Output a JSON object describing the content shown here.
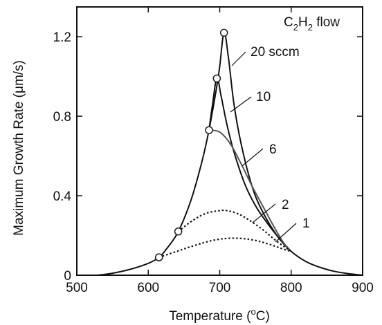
{
  "chart_data": {
    "type": "line",
    "title": "",
    "xlabel": {
      "text": "Temperature (",
      "sup": "o",
      "text2": "C)"
    },
    "ylabel": "Maximum Growth Rate (μm/s)",
    "xlim": [
      500,
      900
    ],
    "ylim": [
      0,
      1.35
    ],
    "xticks": [
      500,
      600,
      700,
      800,
      900
    ],
    "xtick_labels": [
      "500",
      "600",
      "700",
      "800",
      "900"
    ],
    "yticks": [
      0,
      0.4,
      0.8,
      1.2
    ],
    "ytick_labels": [
      "0",
      "0.4",
      "0.8",
      "1.2"
    ],
    "grid": false,
    "legend_title": {
      "pre": "C",
      "sub1": "2",
      "mid": "H",
      "sub2": "2",
      "post": " flow"
    },
    "series": [
      {
        "name": "20 sccm",
        "label": "20 sccm",
        "style": "solid",
        "color": "#111111",
        "x": [
          528,
          550,
          575,
          600,
          615,
          625,
          642,
          660,
          675,
          685,
          695,
          700,
          706,
          712,
          720,
          730,
          745,
          760,
          780,
          800,
          820,
          840,
          860,
          880,
          900
        ],
        "y": [
          0.0,
          0.01,
          0.03,
          0.06,
          0.09,
          0.13,
          0.22,
          0.38,
          0.57,
          0.73,
          0.93,
          1.05,
          1.22,
          1.1,
          0.86,
          0.66,
          0.45,
          0.32,
          0.2,
          0.12,
          0.07,
          0.04,
          0.02,
          0.008,
          0.0
        ],
        "markers": [
          [
            615,
            0.09
          ],
          [
            642,
            0.22
          ],
          [
            685,
            0.73
          ],
          [
            696,
            0.99
          ],
          [
            706,
            1.22
          ]
        ]
      },
      {
        "name": "10",
        "label": "10",
        "style": "solid",
        "color": "#111111",
        "x": [
          685,
          690,
          696,
          702,
          710,
          720,
          735,
          750,
          765,
          780,
          800
        ],
        "y": [
          0.73,
          0.86,
          0.99,
          0.9,
          0.76,
          0.62,
          0.46,
          0.35,
          0.27,
          0.2,
          0.12
        ],
        "markers": [
          [
            696,
            0.99
          ]
        ]
      },
      {
        "name": "6",
        "label": "6",
        "style": "solid",
        "color": "#555555",
        "x": [
          685,
          700,
          715,
          730,
          745,
          760,
          775,
          790,
          800
        ],
        "y": [
          0.73,
          0.72,
          0.66,
          0.56,
          0.45,
          0.35,
          0.25,
          0.16,
          0.12
        ],
        "markers": [
          [
            685,
            0.73
          ]
        ]
      },
      {
        "name": "2",
        "label": "2",
        "style": "dotted",
        "color": "#111111",
        "x": [
          642,
          660,
          680,
          700,
          710,
          725,
          740,
          760,
          780,
          800
        ],
        "y": [
          0.22,
          0.27,
          0.31,
          0.325,
          0.325,
          0.31,
          0.28,
          0.23,
          0.17,
          0.12
        ],
        "markers": [
          [
            642,
            0.22
          ]
        ]
      },
      {
        "name": "1",
        "label": "1",
        "style": "dotted",
        "color": "#111111",
        "x": [
          615,
          640,
          665,
          690,
          710,
          730,
          750,
          770,
          790,
          800
        ],
        "y": [
          0.09,
          0.12,
          0.15,
          0.175,
          0.185,
          0.185,
          0.175,
          0.155,
          0.13,
          0.12
        ],
        "markers": [
          [
            615,
            0.09
          ]
        ]
      }
    ],
    "annotations": [
      {
        "series": "20 sccm",
        "text": "20 sccm"
      },
      {
        "series": "10",
        "text": "10"
      },
      {
        "series": "6",
        "text": "6"
      },
      {
        "series": "2",
        "text": "2"
      },
      {
        "series": "1",
        "text": "1"
      }
    ]
  }
}
